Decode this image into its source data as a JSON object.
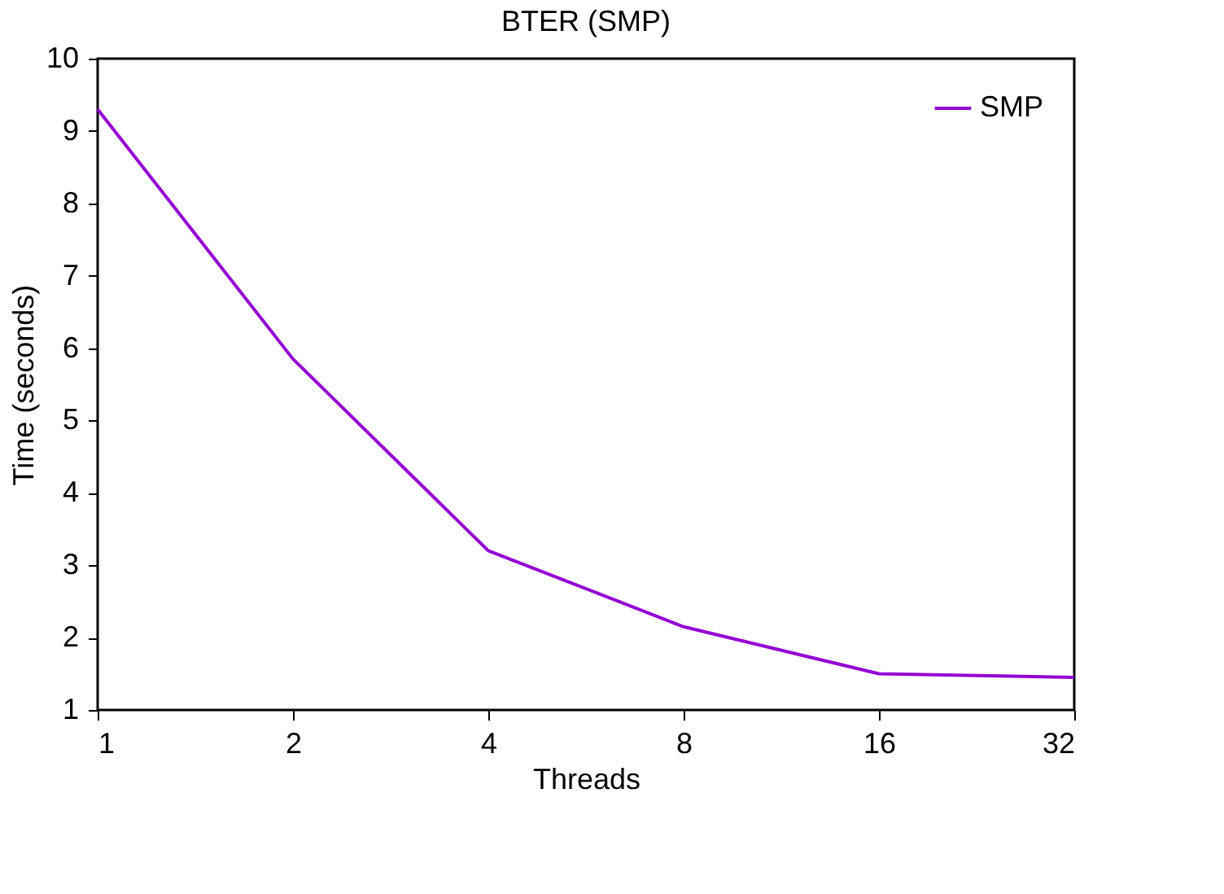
{
  "chart_data": {
    "type": "line",
    "title": "BTER (SMP)",
    "xlabel": "Threads",
    "ylabel": "Time (seconds)",
    "x": [
      1,
      2,
      4,
      8,
      16,
      32
    ],
    "series": [
      {
        "name": "SMP",
        "color": "#9400d3",
        "values": [
          9.3,
          5.85,
          3.2,
          2.15,
          1.5,
          1.45
        ]
      }
    ],
    "xlim": [
      1,
      32
    ],
    "xticks": [
      1,
      2,
      4,
      8,
      16,
      32
    ],
    "ylim": [
      1,
      10
    ],
    "yticks": [
      1,
      2,
      3,
      4,
      5,
      6,
      7,
      8,
      9,
      10
    ],
    "log": "x",
    "legend": "top right",
    "grid": false,
    "marker": "none",
    "line_style": "solid"
  }
}
